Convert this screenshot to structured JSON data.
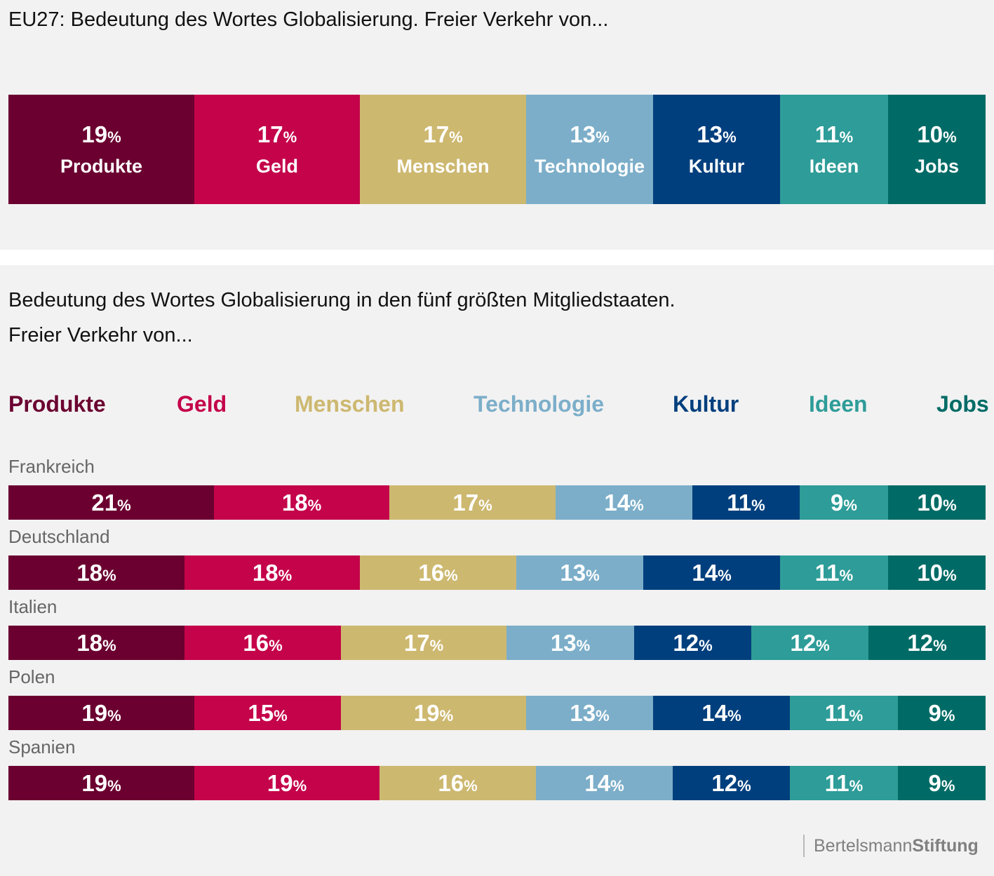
{
  "chart_data": [
    {
      "type": "bar",
      "title": "EU27: Bedeutung des Wortes Globalisierung. Freier Verkehr von...",
      "categories": [
        "Produkte",
        "Geld",
        "Menschen",
        "Technologie",
        "Kultur",
        "Ideen",
        "Jobs"
      ],
      "values": [
        19,
        17,
        17,
        13,
        13,
        11,
        10
      ],
      "value_suffix": "%",
      "colors": [
        "#6b0030",
        "#c4034a",
        "#cdb870",
        "#7caec9",
        "#003f7d",
        "#2e9c98",
        "#006b66"
      ]
    },
    {
      "type": "bar",
      "title": "Bedeutung des Wortes Globalisierung in den fünf größten Mitgliedstaaten.",
      "subtitle": "Freier Verkehr von...",
      "legend": [
        "Produkte",
        "Geld",
        "Menschen",
        "Technologie",
        "Kultur",
        "Ideen",
        "Jobs"
      ],
      "value_suffix": "%",
      "colors": [
        "#6b0030",
        "#c4034a",
        "#cdb870",
        "#7caec9",
        "#003f7d",
        "#2e9c98",
        "#006b66"
      ],
      "rows": [
        {
          "name": "Frankreich",
          "values": [
            21,
            18,
            17,
            14,
            11,
            9,
            10
          ]
        },
        {
          "name": "Deutschland",
          "values": [
            18,
            18,
            16,
            13,
            14,
            11,
            10
          ]
        },
        {
          "name": "Italien",
          "values": [
            18,
            16,
            17,
            13,
            12,
            12,
            12
          ]
        },
        {
          "name": "Polen",
          "values": [
            19,
            15,
            19,
            13,
            14,
            11,
            9
          ]
        },
        {
          "name": "Spanien",
          "values": [
            19,
            19,
            16,
            14,
            12,
            11,
            9
          ]
        }
      ]
    }
  ],
  "footer": {
    "brand_light": "Bertelsmann",
    "brand_bold": "Stiftung"
  }
}
